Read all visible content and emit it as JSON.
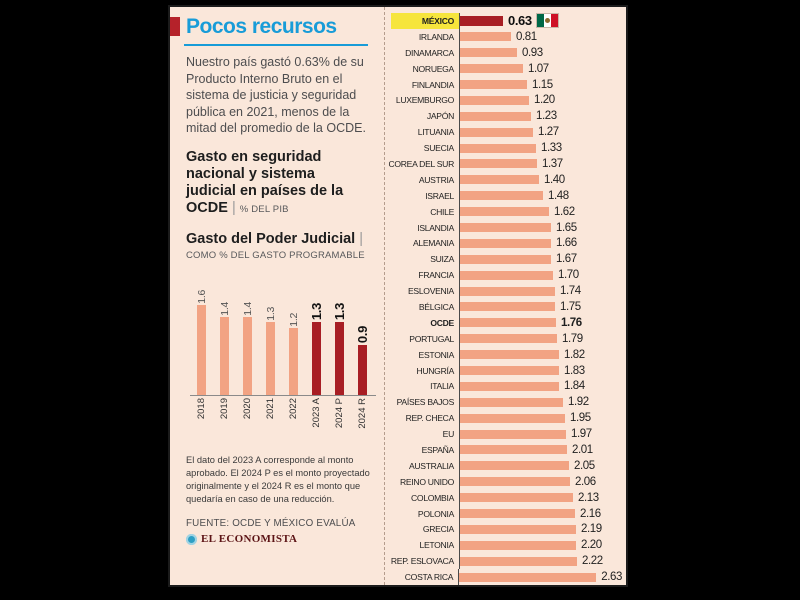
{
  "panel": {
    "title": "Pocos recursos",
    "intro": "Nuestro país gastó 0.63% de su Producto Interno Bruto en el sistema de justicia y seguridad pública en 2021, menos de la mitad del promedio de la OCDE.",
    "heading1": {
      "text": "Gasto en seguridad nacional y sistema judicial en países de la OCDE",
      "sep": "|",
      "unit": "% DEL PIB"
    },
    "heading2": {
      "text": "Gasto del Poder Judicial",
      "sep": "|",
      "unit": "COMO % DEL GASTO PROGRAMABLE"
    },
    "footnote": "El dato del 2023 A corresponde al monto aprobado. El 2024 P es el monto proyectado originalmente y el 2024 R es el monto que quedaría en caso de una reducción.",
    "source": "FUENTE: OCDE Y MÉXICO EVALÚA",
    "logo_text": "EL ECONOMISTA"
  },
  "icons": {
    "title_marker": "red-square-marker",
    "logo": "el-economista-circle-logo",
    "mexico_flag": "mexico-flag"
  },
  "colors": {
    "canvas": "#000000",
    "panel_bg": "#FAE7DA",
    "border": "#1B1B1B",
    "title_blue": "#189CD8",
    "marker_red": "#B5222A",
    "bar_salmon": "#F2A383",
    "bar_dark_red": "#A81E24",
    "highlight_yellow": "#F6E53C",
    "text_dark": "#231F20",
    "text_gray": "#4D4D4F",
    "flag_green": "#006847",
    "flag_white": "#FFFFFF",
    "flag_red": "#CE1126"
  },
  "chart_data": [
    {
      "type": "bar",
      "title": "Gasto del Poder Judicial",
      "subtitle": "COMO % DEL GASTO PROGRAMABLE",
      "categories": [
        "2018",
        "2019",
        "2020",
        "2021",
        "2022",
        "2023 A",
        "2024 P",
        "2024 R"
      ],
      "values": [
        1.6,
        1.4,
        1.4,
        1.3,
        1.2,
        1.3,
        1.3,
        0.9
      ],
      "values_display": [
        "1.6",
        "1.4",
        "1.4",
        "1.3",
        "1.2",
        "1.3",
        "1.3",
        "0.9"
      ],
      "dark_from": 5,
      "ylim": [
        0,
        1.6
      ],
      "grid": false,
      "legend": "none",
      "note": "Bars for 2023 A, 2024 P and 2024 R are dark red; earlier years salmon"
    },
    {
      "type": "bar",
      "orientation": "horizontal",
      "title": "Gasto en seguridad nacional y sistema judicial en países de la OCDE",
      "unit": "% DEL PIB",
      "highlight_row": "MÉXICO",
      "bold_row": "OCDE",
      "xlim": [
        0,
        2.63
      ],
      "grid": false,
      "categories": [
        "MÉXICO",
        "IRLANDA",
        "DINAMARCA",
        "NORUEGA",
        "FINLANDIA",
        "LUXEMBURGO",
        "JAPÓN",
        "LITUANIA",
        "SUECIA",
        "COREA DEL SUR",
        "AUSTRIA",
        "ISRAEL",
        "CHILE",
        "ISLANDIA",
        "ALEMANIA",
        "SUIZA",
        "FRANCIA",
        "ESLOVENIA",
        "BÉLGICA",
        "OCDE",
        "PORTUGAL",
        "ESTONIA",
        "HUNGRÍA",
        "ITALIA",
        "PAÍSES BAJOS",
        "REP. CHECA",
        "EU",
        "ESPAÑA",
        "AUSTRALIA",
        "REINO UNIDO",
        "COLOMBIA",
        "POLONIA",
        "GRECIA",
        "LETONIA",
        "REP. ESLOVACA",
        "COSTA RICA"
      ],
      "values": [
        0.63,
        0.81,
        0.93,
        1.07,
        1.15,
        1.2,
        1.23,
        1.27,
        1.33,
        1.37,
        1.4,
        1.48,
        1.62,
        1.65,
        1.66,
        1.67,
        1.7,
        1.74,
        1.75,
        1.76,
        1.79,
        1.82,
        1.83,
        1.84,
        1.92,
        1.95,
        1.97,
        2.01,
        2.05,
        2.06,
        2.13,
        2.16,
        2.19,
        2.2,
        2.22,
        2.63
      ],
      "values_display": [
        "0.63",
        "0.81",
        "0.93",
        "1.07",
        "1.15",
        "1.20",
        "1.23",
        "1.27",
        "1.33",
        "1.37",
        "1.40",
        "1.48",
        "1.62",
        "1.65",
        "1.66",
        "1.67",
        "1.70",
        "1.74",
        "1.75",
        "1.76",
        "1.79",
        "1.82",
        "1.83",
        "1.84",
        "1.92",
        "1.95",
        "1.97",
        "2.01",
        "2.05",
        "2.06",
        "2.13",
        "2.16",
        "2.19",
        "2.20",
        "2.22",
        "2.63"
      ]
    }
  ]
}
